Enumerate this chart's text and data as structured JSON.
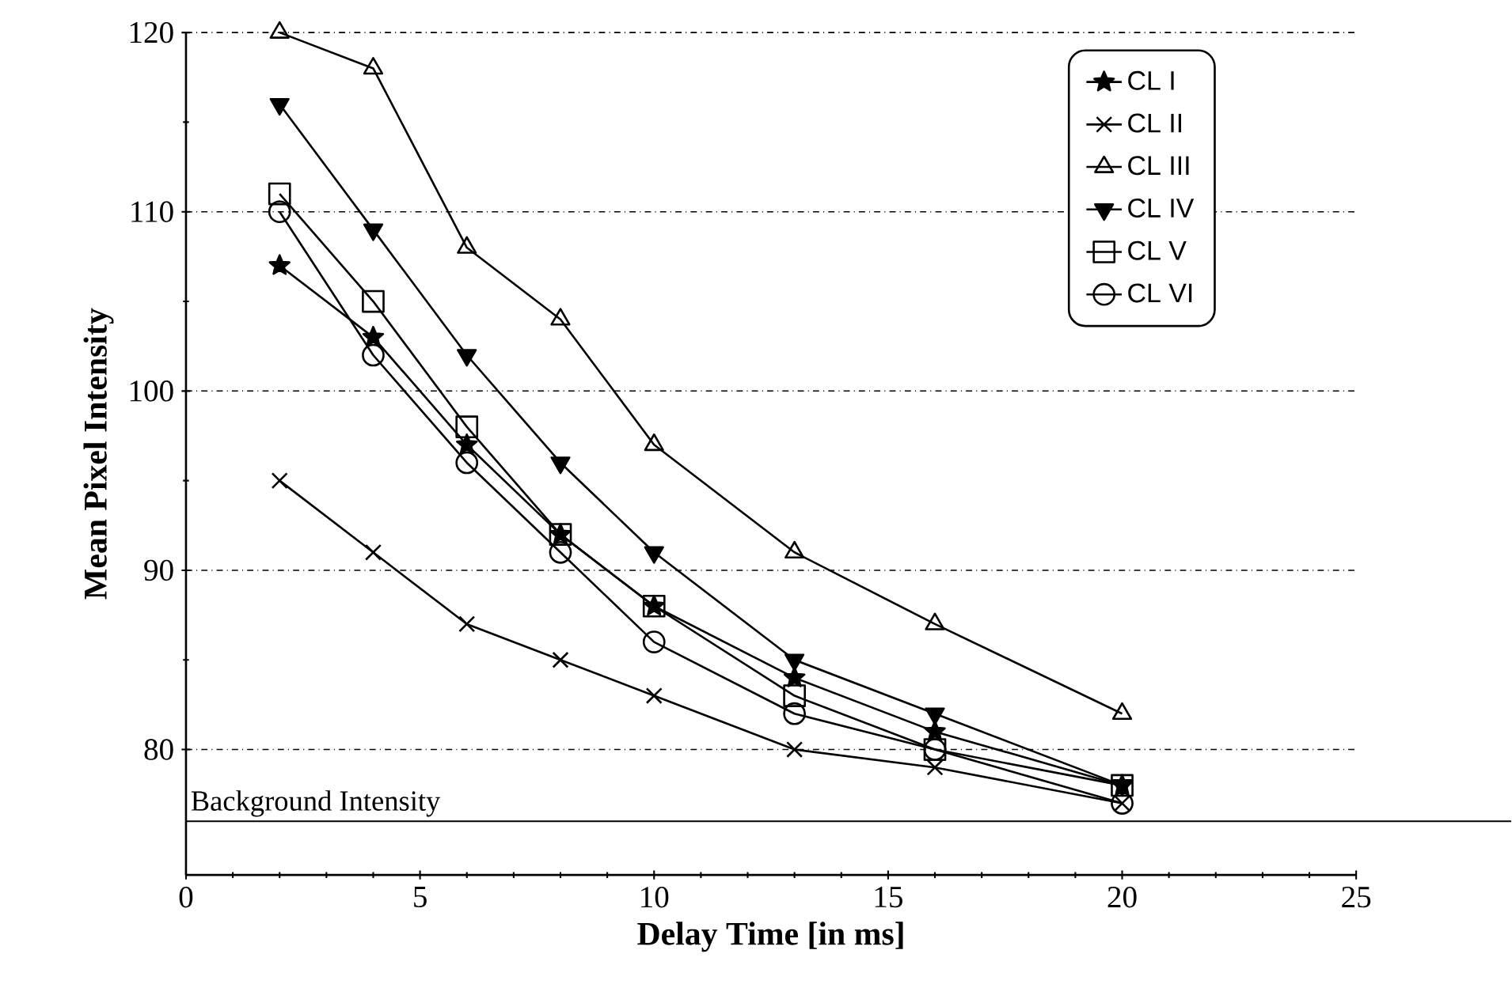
{
  "chart_data": {
    "type": "line",
    "xlabel": "Delay Time [in ms]",
    "ylabel": "Mean Pixel Intensity",
    "x": [
      2,
      4,
      6,
      8,
      10,
      13,
      16,
      20
    ],
    "series": [
      {
        "name": "CL I",
        "color": "#000000",
        "marker": "star",
        "values": [
          107,
          103,
          97,
          92,
          88,
          84,
          81,
          78
        ]
      },
      {
        "name": "CL II",
        "color": "#000000",
        "marker": "cross",
        "values": [
          95,
          91,
          87,
          85,
          83,
          80,
          79,
          77
        ]
      },
      {
        "name": "CL III",
        "color": "#000000",
        "marker": "triangle",
        "values": [
          120,
          118,
          108,
          104,
          97,
          91,
          87,
          82
        ]
      },
      {
        "name": "CL IV",
        "color": "#000000",
        "marker": "triangle-down",
        "values": [
          116,
          109,
          102,
          96,
          91,
          85,
          82,
          78
        ]
      },
      {
        "name": "CL V",
        "color": "#000000",
        "marker": "square",
        "values": [
          111,
          105,
          98,
          92,
          88,
          83,
          80,
          78
        ]
      },
      {
        "name": "CL VI",
        "color": "#000000",
        "marker": "circle",
        "values": [
          110,
          102,
          96,
          91,
          86,
          82,
          80,
          77
        ]
      }
    ],
    "xlim": [
      0,
      25
    ],
    "xticks": [
      0,
      5,
      10,
      15,
      20,
      25
    ],
    "ylim": [
      73,
      120
    ],
    "yticks": [
      80,
      90,
      100,
      110,
      120
    ],
    "ref_lines": [
      {
        "axis": "y",
        "value": 76,
        "label": "Background Intensity",
        "color": "#000000",
        "line_style": "solid"
      }
    ],
    "grid": "y",
    "legend": "top right",
    "line_style": "solid"
  }
}
